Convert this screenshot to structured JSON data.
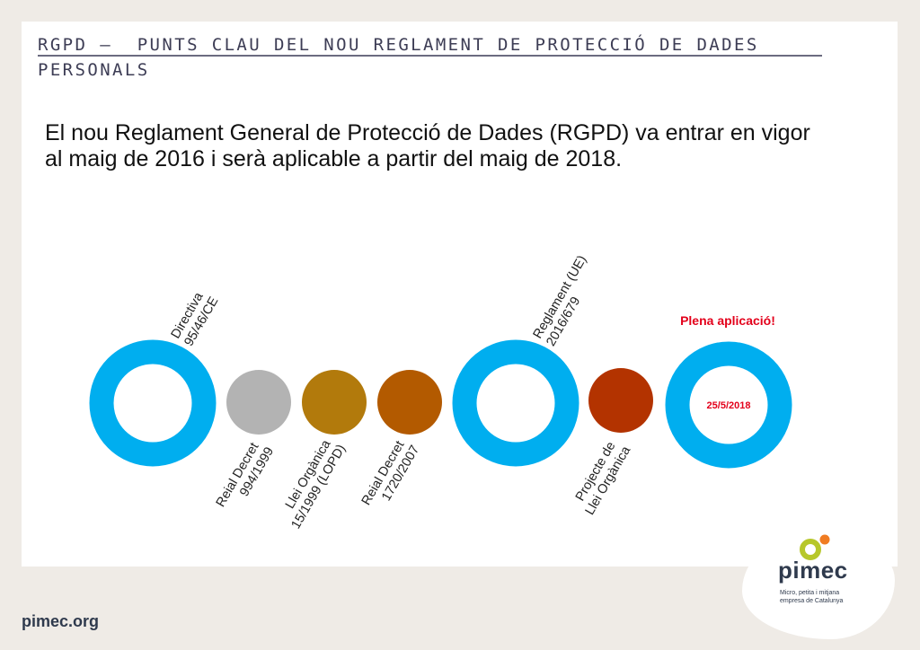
{
  "header": {
    "title": "RGPD –  PUNTS CLAU DEL NOU REGLAMENT DE PROTECCIÓ DE DADES\nPERSONALS"
  },
  "intro": {
    "text": "El nou Reglament General de Protecció de Dades (RGPD) va entrar en vigor al maig de 2016 i serà aplicable a partir del maig de 2018."
  },
  "timeline": {
    "milestones": [
      {
        "id": "directiva",
        "line1": "Directiva",
        "line2": "95/46/CE",
        "color": "#00aeef",
        "style": "ring"
      },
      {
        "id": "reial-decret-994",
        "line1": "Reial Decret",
        "line2": "994/1999",
        "color": "#b3b3b3",
        "style": "disc"
      },
      {
        "id": "lopd",
        "line1": "Llei Orgànica",
        "line2": "15/1999 (LOPD)",
        "color": "#b27a0c",
        "style": "disc"
      },
      {
        "id": "reial-decret-1720",
        "line1": "Reial Decret",
        "line2": "1720/2007",
        "color": "#b35a00",
        "style": "disc"
      },
      {
        "id": "reglament-ue",
        "line1": "Reglament (UE)",
        "line2": "2016/679",
        "color": "#00aeef",
        "style": "ring"
      },
      {
        "id": "projecte-llei",
        "line1": "Projecte de",
        "line2": "Llei Orgànica",
        "color": "#b33300",
        "style": "disc"
      },
      {
        "id": "plena-aplicacio",
        "headline": "Plena aplicació!",
        "date": "25/5/2018",
        "color": "#00aeef",
        "style": "ring"
      }
    ],
    "label_color": "#222222",
    "highlight_color": "#e3001b"
  },
  "footer": {
    "url": "pimec.org",
    "brand": "pimec",
    "tagline_line1": "Micro, petita i mitjana",
    "tagline_line2": "empresa de Catalunya",
    "logo_colors": [
      "#b7c72a",
      "#f07c22"
    ]
  }
}
